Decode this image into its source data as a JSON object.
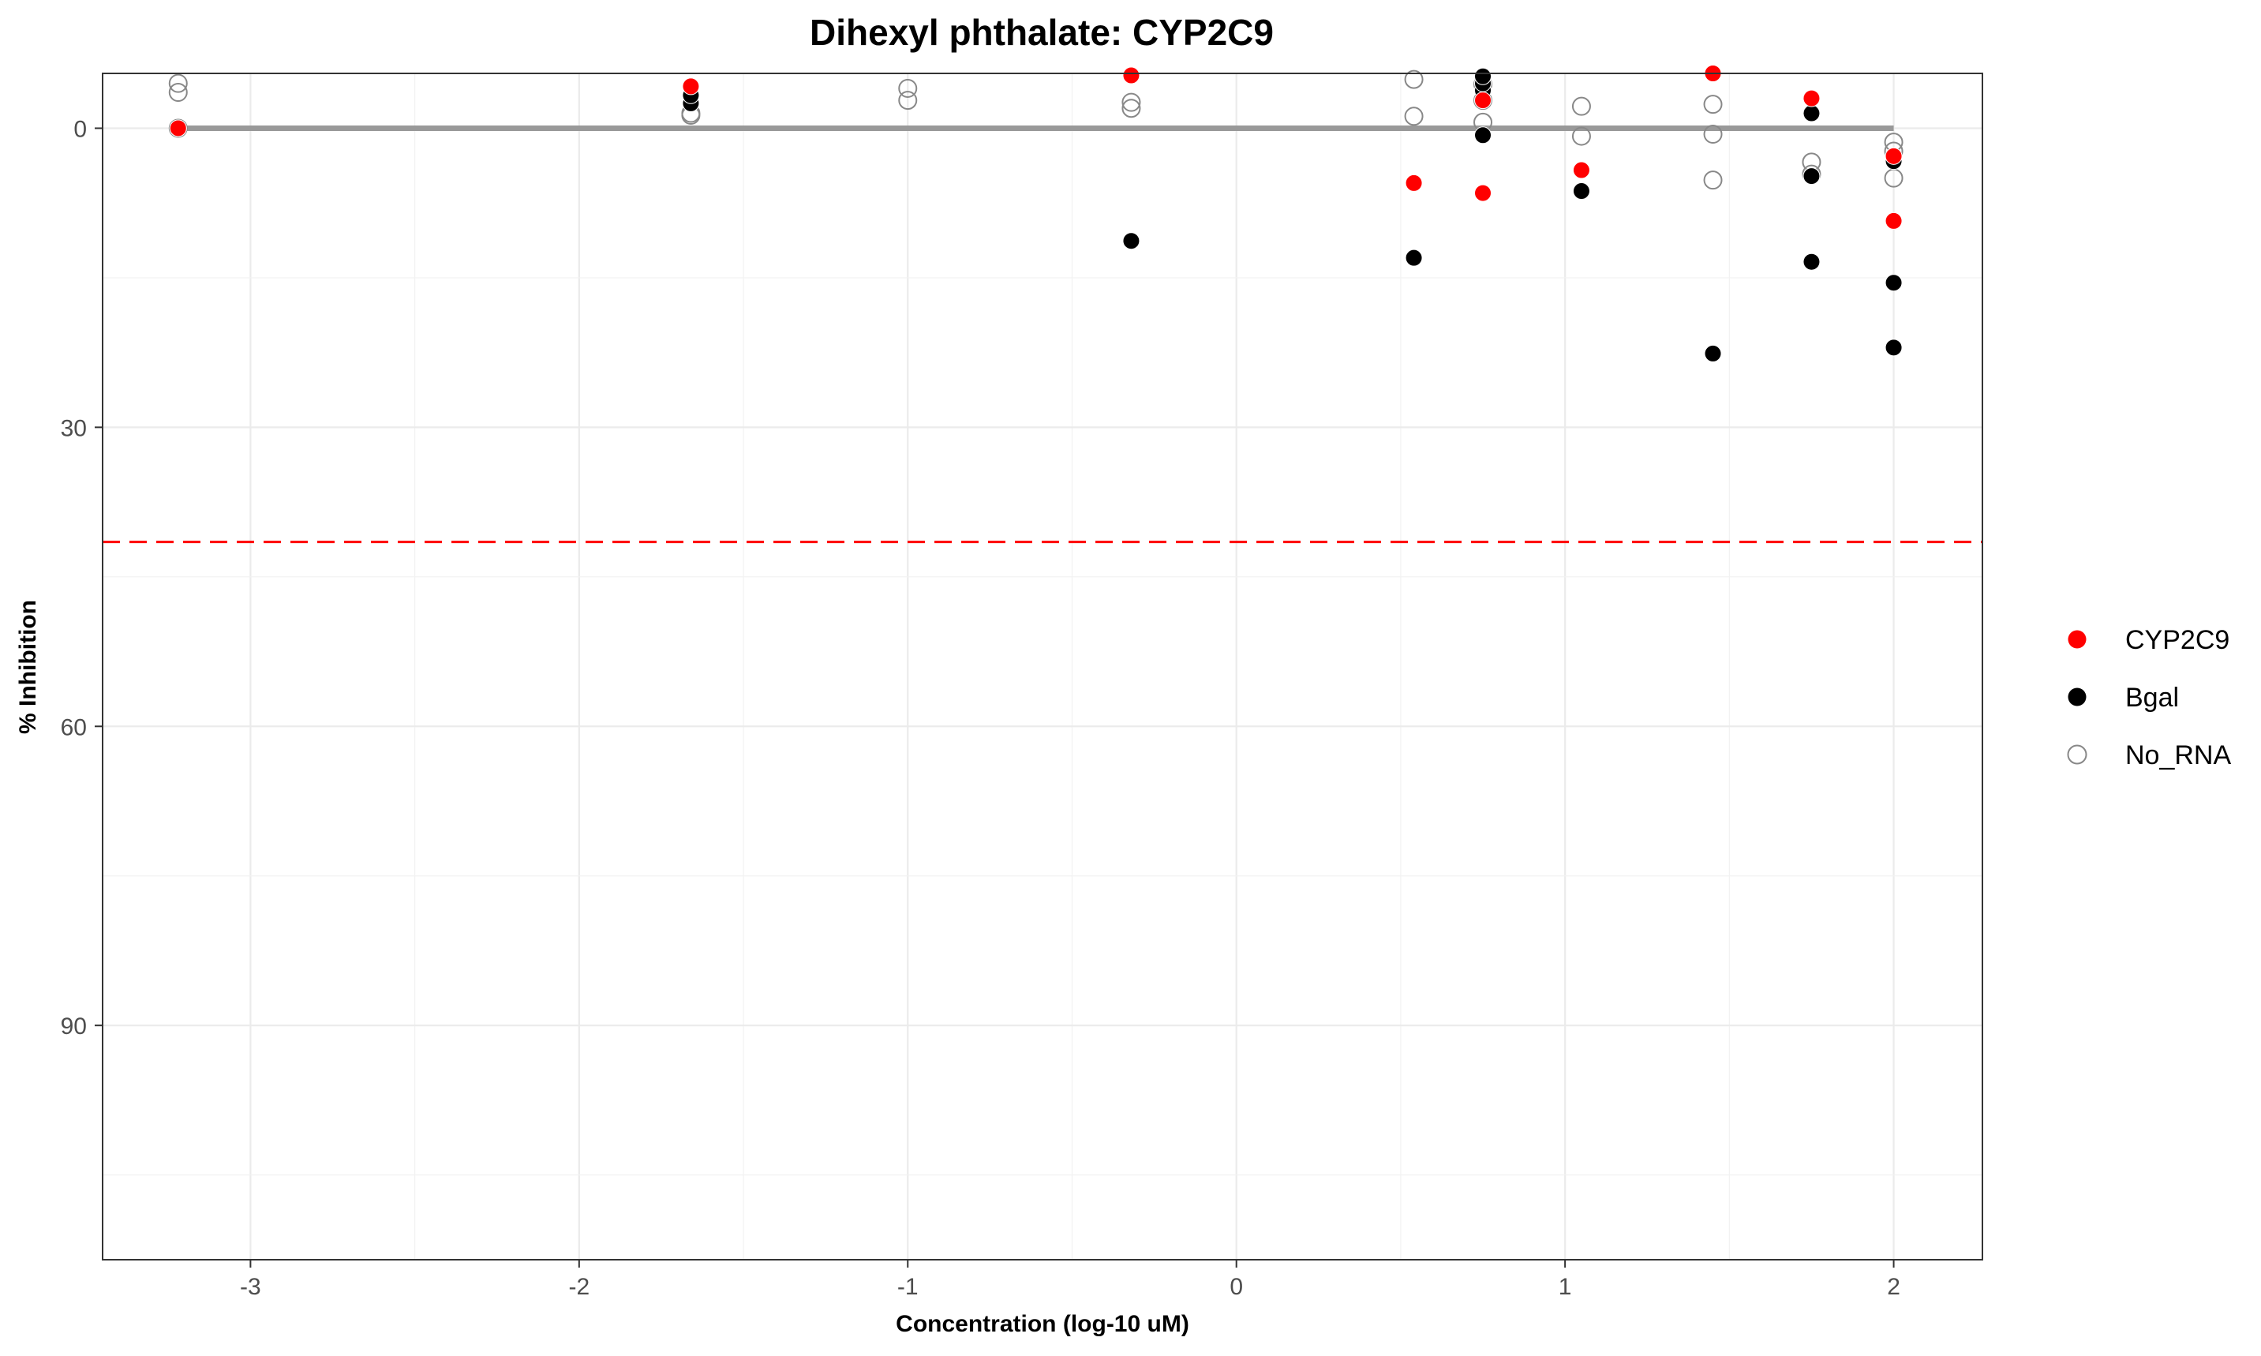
{
  "chart_data": {
    "type": "scatter",
    "title": "Dihexyl phthalate: CYP2C9",
    "xlabel": "Concentration (log-10 uM)",
    "ylabel": "% Inhibition",
    "xlim": [
      -3.45,
      2.27
    ],
    "ylim": [
      113.5,
      -5.5
    ],
    "y_reversed": true,
    "x_ticks": [
      -3,
      -2,
      -1,
      0,
      1,
      2
    ],
    "x_tick_labels": [
      "-3",
      "-2",
      "-1",
      "0",
      "1",
      "2"
    ],
    "y_ticks": [
      0,
      30,
      60,
      90
    ],
    "y_tick_labels": [
      "0",
      "30",
      "60",
      "90"
    ],
    "grid": true,
    "legend_position": "right",
    "threshold_line": {
      "y": 41.5,
      "style": "dashed",
      "color": "#ff0000"
    },
    "fit_line": {
      "x": [
        -3.22,
        2.0
      ],
      "y": [
        0,
        0
      ],
      "color": "#999999"
    },
    "series": [
      {
        "name": "CYP2C9",
        "marker": "filled",
        "color": "#ff0000",
        "x": [
          -3.22,
          -1.66,
          -0.32,
          0.54,
          0.75,
          0.75,
          1.05,
          1.45,
          1.75,
          2.0,
          2.0
        ],
        "y": [
          0,
          -4.2,
          -5.3,
          5.5,
          6.5,
          -2.8,
          4.2,
          -5.5,
          -3.0,
          9.3,
          2.8
        ]
      },
      {
        "name": "Bgal",
        "marker": "filled",
        "color": "#000000",
        "x": [
          -3.22,
          -1.66,
          -1.66,
          -0.32,
          -0.32,
          0.54,
          0.75,
          0.75,
          0.75,
          0.75,
          1.05,
          1.45,
          1.45,
          1.75,
          1.75,
          1.75,
          2.0,
          2.0,
          2.0
        ],
        "y": [
          0,
          -2.5,
          -3.3,
          -5.3,
          11.3,
          13.0,
          -3.8,
          -4.5,
          -5.2,
          0.7,
          6.3,
          -5.5,
          22.6,
          -1.5,
          4.8,
          13.4,
          3.3,
          15.5,
          22.0
        ]
      },
      {
        "name": "No_RNA",
        "marker": "hollow",
        "color": "#888888",
        "x": [
          -3.22,
          -3.22,
          -3.22,
          -1.66,
          -1.66,
          -1.0,
          -1.0,
          -0.32,
          -0.32,
          0.54,
          0.54,
          0.75,
          0.75,
          0.75,
          1.05,
          1.05,
          1.45,
          1.45,
          1.45,
          1.75,
          1.75,
          2.0,
          2.0,
          2.0
        ],
        "y": [
          -4.5,
          -3.6,
          0,
          -1.3,
          -1.5,
          -4.0,
          -2.8,
          -2.6,
          -2.0,
          -4.9,
          -1.2,
          -2.8,
          -0.6,
          -4.4,
          -2.2,
          0.8,
          -2.4,
          0.6,
          5.2,
          3.4,
          4.6,
          1.4,
          2.3,
          5.0
        ]
      }
    ]
  },
  "legend": {
    "items": [
      {
        "label": "CYP2C9",
        "marker": "filled",
        "color": "#ff0000"
      },
      {
        "label": "Bgal",
        "marker": "filled",
        "color": "#000000"
      },
      {
        "label": "No_RNA",
        "marker": "hollow",
        "color": "#888888"
      }
    ]
  }
}
